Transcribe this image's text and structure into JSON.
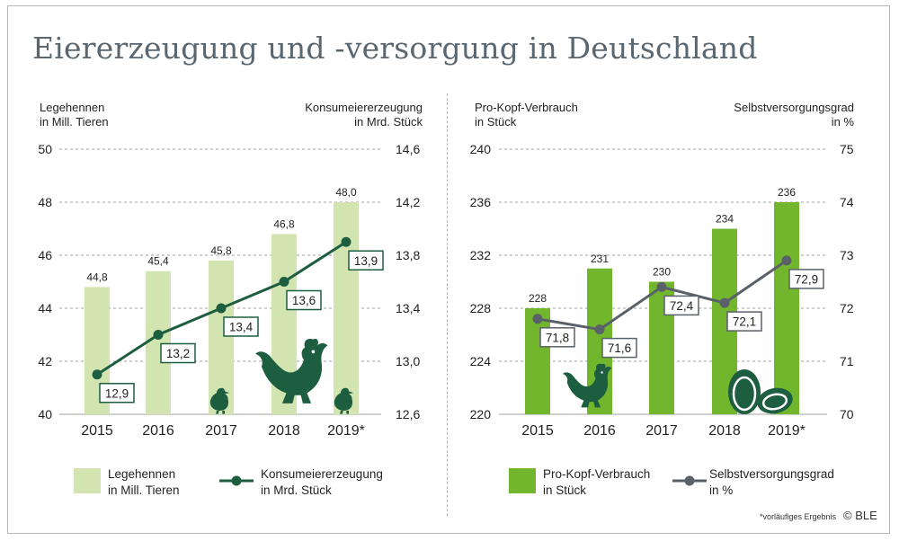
{
  "title": "Eiererzeugung und -versorgung in Deutschland",
  "footnote": "*vorläufiges Ergebnis",
  "copyright": "© BLE",
  "colors": {
    "left_bar": "#d2e5b0",
    "left_line": "#1e5e40",
    "right_bar": "#72b62e",
    "right_line": "#5a6168",
    "grid": "#a0a0a0",
    "text": "#222222",
    "icon_dark": "#1e5e40",
    "title": "#5b6770"
  },
  "chart_data": [
    {
      "type": "bar",
      "categories": [
        "2015",
        "2016",
        "2017",
        "2018",
        "2019*"
      ],
      "left_axis_title": [
        "Legehennen",
        "in Mill. Tieren"
      ],
      "right_axis_title": [
        "Konsumeiererzeugung",
        "in Mrd. Stück"
      ],
      "ylim": [
        40,
        50
      ],
      "yticks": [
        "50",
        "48",
        "46",
        "44",
        "42",
        "40"
      ],
      "y2lim": [
        12.6,
        14.6
      ],
      "y2ticks": [
        "14,6",
        "14,2",
        "13,8",
        "13,4",
        "13,0",
        "12,6"
      ],
      "series": [
        {
          "name": "Legehennen in Mill. Tieren",
          "kind": "bar",
          "axis": "left",
          "values": [
            44.8,
            45.4,
            45.8,
            46.8,
            48.0
          ],
          "labels": [
            "44,8",
            "45,4",
            "45,8",
            "46,8",
            "48,0"
          ]
        },
        {
          "name": "Konsumeiererzeugung in Mrd. Stück",
          "kind": "line",
          "axis": "right",
          "values": [
            12.9,
            13.2,
            13.4,
            13.6,
            13.9
          ],
          "labels": [
            "12,9",
            "13,2",
            "13,4",
            "13,6",
            "13,9"
          ]
        }
      ],
      "legend": [
        {
          "kind": "bar",
          "lines": [
            "Legehennen",
            "in Mill. Tieren"
          ]
        },
        {
          "kind": "line",
          "lines": [
            "Konsumeiererzeugung",
            "in Mrd. Stück"
          ]
        }
      ],
      "icons": [
        "chick-icon",
        "hen-icon",
        "chick-icon"
      ]
    },
    {
      "type": "bar",
      "categories": [
        "2015",
        "2016",
        "2017",
        "2018",
        "2019*"
      ],
      "left_axis_title": [
        "Pro-Kopf-Verbrauch",
        "in Stück"
      ],
      "right_axis_title": [
        "Selbstversorgungsgrad",
        "in %"
      ],
      "ylim": [
        220,
        240
      ],
      "yticks": [
        "240",
        "236",
        "232",
        "228",
        "224",
        "220"
      ],
      "y2lim": [
        70,
        75
      ],
      "y2ticks": [
        "75",
        "74",
        "73",
        "72",
        "71",
        "70"
      ],
      "series": [
        {
          "name": "Pro-Kopf-Verbrauch in Stück",
          "kind": "bar",
          "axis": "left",
          "values": [
            228,
            231,
            230,
            234,
            236
          ],
          "labels": [
            "228",
            "231",
            "230",
            "234",
            "236"
          ]
        },
        {
          "name": "Selbstversorgungsgrad in %",
          "kind": "line",
          "axis": "right",
          "values": [
            71.8,
            71.6,
            72.4,
            72.1,
            72.9
          ],
          "labels": [
            "71,8",
            "71,6",
            "72,4",
            "72,1",
            "72,9"
          ]
        }
      ],
      "legend": [
        {
          "kind": "bar",
          "lines": [
            "Pro-Kopf-Verbrauch",
            "in Stück"
          ]
        },
        {
          "kind": "line",
          "lines": [
            "Selbstversorgungsgrad",
            "in %"
          ]
        }
      ],
      "icons": [
        "hen-icon",
        "eggs-icon"
      ]
    }
  ]
}
